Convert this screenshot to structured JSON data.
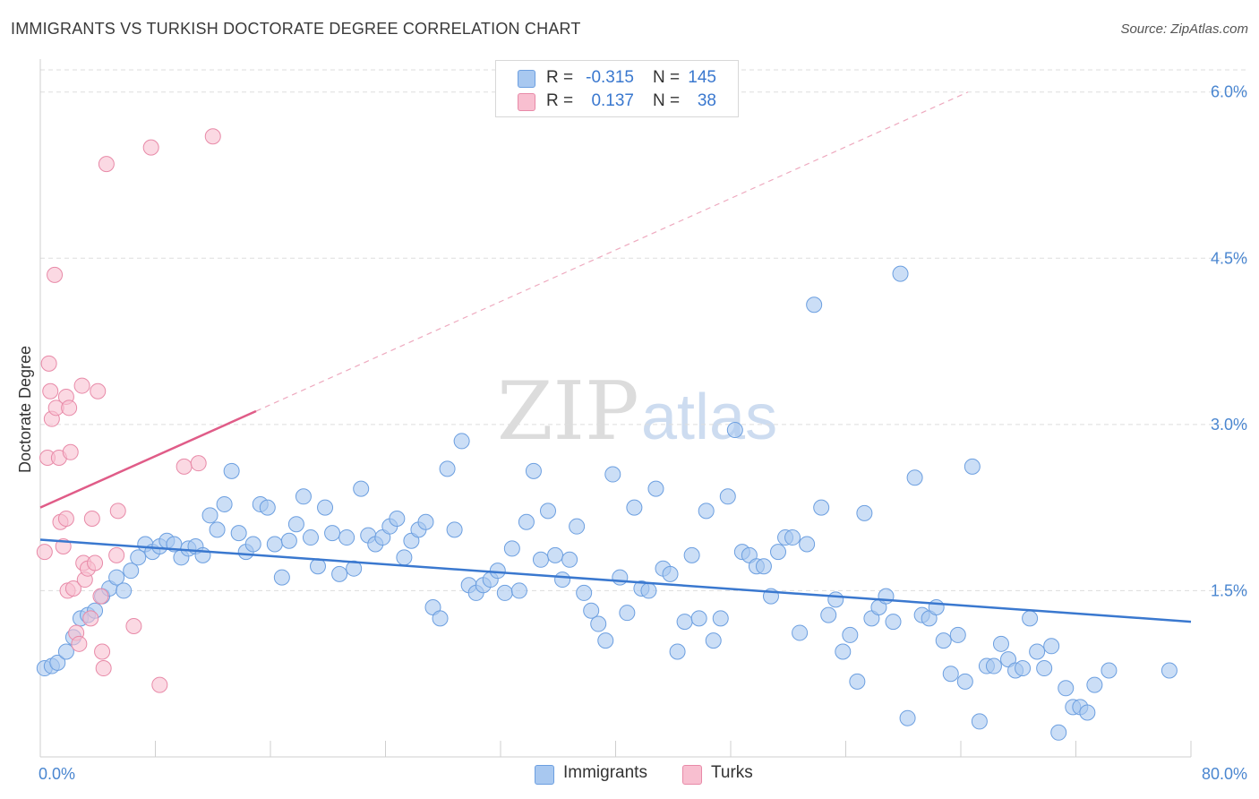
{
  "title": "IMMIGRANTS VS TURKISH DOCTORATE DEGREE CORRELATION CHART",
  "source": "Source: ZipAtlas.com",
  "watermark": {
    "zip": "ZIP",
    "atlas": "atlas"
  },
  "legend": {
    "rows": [
      {
        "r_label": "R =",
        "r_value": "-0.315",
        "n_label": "N =",
        "n_value": "145",
        "color": "#a8c8f0",
        "border": "#6c9fe0"
      },
      {
        "r_label": "R =",
        "r_value": "0.137",
        "n_label": "N =",
        "n_value": "38",
        "color": "#f8bfd0",
        "border": "#e88aa8"
      }
    ],
    "bottom": [
      {
        "label": "Immigrants",
        "color": "#a8c8f0",
        "border": "#6c9fe0"
      },
      {
        "label": "Turks",
        "color": "#f8bfd0",
        "border": "#e88aa8"
      }
    ]
  },
  "chart_data": {
    "type": "scatter",
    "title": "IMMIGRANTS VS TURKISH DOCTORATE DEGREE CORRELATION CHART",
    "xlabel": "",
    "ylabel": "Doctorate Degree",
    "xlim": [
      0,
      80
    ],
    "ylim": [
      0,
      6.2
    ],
    "x_tick_labels": [
      {
        "value": 0,
        "label": "0.0%"
      },
      {
        "value": 80,
        "label": "80.0%"
      }
    ],
    "y_ticks": [
      {
        "value": 1.5,
        "label": "1.5%"
      },
      {
        "value": 3.0,
        "label": "3.0%"
      },
      {
        "value": 4.5,
        "label": "4.5%"
      },
      {
        "value": 6.0,
        "label": "6.0%"
      }
    ],
    "grid": "horizontal dashed",
    "series": [
      {
        "name": "Immigrants",
        "color": "#a8c8f0",
        "stroke": "#6c9fe0",
        "trend": {
          "x": [
            0,
            80
          ],
          "y": [
            1.96,
            1.22
          ],
          "color": "#3a78cf"
        },
        "points": [
          [
            0.3,
            0.8
          ],
          [
            0.8,
            0.82
          ],
          [
            1.2,
            0.85
          ],
          [
            1.8,
            0.95
          ],
          [
            2.3,
            1.08
          ],
          [
            2.8,
            1.25
          ],
          [
            3.3,
            1.28
          ],
          [
            3.8,
            1.32
          ],
          [
            4.3,
            1.45
          ],
          [
            4.8,
            1.52
          ],
          [
            5.3,
            1.62
          ],
          [
            5.8,
            1.5
          ],
          [
            6.3,
            1.68
          ],
          [
            6.8,
            1.8
          ],
          [
            7.3,
            1.92
          ],
          [
            7.8,
            1.85
          ],
          [
            8.3,
            1.9
          ],
          [
            8.8,
            1.95
          ],
          [
            9.3,
            1.92
          ],
          [
            9.8,
            1.8
          ],
          [
            10.3,
            1.88
          ],
          [
            10.8,
            1.9
          ],
          [
            11.3,
            1.82
          ],
          [
            11.8,
            2.18
          ],
          [
            12.3,
            2.05
          ],
          [
            12.8,
            2.28
          ],
          [
            13.3,
            2.58
          ],
          [
            13.8,
            2.02
          ],
          [
            14.3,
            1.85
          ],
          [
            14.8,
            1.92
          ],
          [
            15.3,
            2.28
          ],
          [
            15.8,
            2.25
          ],
          [
            16.3,
            1.92
          ],
          [
            16.8,
            1.62
          ],
          [
            17.3,
            1.95
          ],
          [
            17.8,
            2.1
          ],
          [
            18.3,
            2.35
          ],
          [
            18.8,
            1.98
          ],
          [
            19.3,
            1.72
          ],
          [
            19.8,
            2.25
          ],
          [
            20.3,
            2.02
          ],
          [
            20.8,
            1.65
          ],
          [
            21.3,
            1.98
          ],
          [
            21.8,
            1.7
          ],
          [
            22.3,
            2.42
          ],
          [
            22.8,
            2.0
          ],
          [
            23.3,
            1.92
          ],
          [
            23.8,
            1.98
          ],
          [
            24.3,
            2.08
          ],
          [
            24.8,
            2.15
          ],
          [
            25.3,
            1.8
          ],
          [
            25.8,
            1.95
          ],
          [
            26.3,
            2.05
          ],
          [
            26.8,
            2.12
          ],
          [
            27.3,
            1.35
          ],
          [
            27.8,
            1.25
          ],
          [
            28.3,
            2.6
          ],
          [
            28.8,
            2.05
          ],
          [
            29.3,
            2.85
          ],
          [
            29.8,
            1.55
          ],
          [
            30.3,
            1.48
          ],
          [
            30.8,
            1.55
          ],
          [
            31.3,
            1.6
          ],
          [
            31.8,
            1.68
          ],
          [
            32.3,
            1.48
          ],
          [
            32.8,
            1.88
          ],
          [
            33.3,
            1.5
          ],
          [
            33.8,
            2.12
          ],
          [
            34.3,
            2.58
          ],
          [
            34.8,
            1.78
          ],
          [
            35.3,
            2.22
          ],
          [
            35.8,
            1.82
          ],
          [
            36.3,
            1.6
          ],
          [
            36.8,
            1.78
          ],
          [
            37.3,
            2.08
          ],
          [
            37.8,
            1.48
          ],
          [
            38.3,
            1.32
          ],
          [
            38.8,
            1.2
          ],
          [
            39.3,
            1.05
          ],
          [
            39.8,
            2.55
          ],
          [
            40.3,
            1.62
          ],
          [
            40.8,
            1.3
          ],
          [
            41.3,
            2.25
          ],
          [
            41.8,
            1.52
          ],
          [
            42.3,
            1.5
          ],
          [
            42.8,
            2.42
          ],
          [
            43.3,
            1.7
          ],
          [
            43.8,
            1.65
          ],
          [
            44.3,
            0.95
          ],
          [
            44.8,
            1.22
          ],
          [
            45.3,
            1.82
          ],
          [
            45.8,
            1.25
          ],
          [
            46.3,
            2.22
          ],
          [
            46.8,
            1.05
          ],
          [
            47.3,
            1.25
          ],
          [
            47.8,
            2.35
          ],
          [
            48.3,
            2.95
          ],
          [
            48.8,
            1.85
          ],
          [
            49.3,
            1.82
          ],
          [
            49.8,
            1.72
          ],
          [
            50.3,
            1.72
          ],
          [
            50.8,
            1.45
          ],
          [
            51.3,
            1.85
          ],
          [
            51.8,
            1.98
          ],
          [
            52.3,
            1.98
          ],
          [
            52.8,
            1.12
          ],
          [
            53.3,
            1.92
          ],
          [
            53.8,
            4.08
          ],
          [
            54.3,
            2.25
          ],
          [
            54.8,
            1.28
          ],
          [
            55.3,
            1.42
          ],
          [
            55.8,
            0.95
          ],
          [
            56.3,
            1.1
          ],
          [
            56.8,
            0.68
          ],
          [
            57.3,
            2.2
          ],
          [
            57.8,
            1.25
          ],
          [
            58.3,
            1.35
          ],
          [
            58.8,
            1.45
          ],
          [
            59.3,
            1.22
          ],
          [
            59.8,
            4.36
          ],
          [
            60.3,
            0.35
          ],
          [
            60.8,
            2.52
          ],
          [
            61.3,
            1.28
          ],
          [
            61.8,
            1.25
          ],
          [
            62.3,
            1.35
          ],
          [
            62.8,
            1.05
          ],
          [
            63.3,
            0.75
          ],
          [
            63.8,
            1.1
          ],
          [
            64.3,
            0.68
          ],
          [
            64.8,
            2.62
          ],
          [
            65.3,
            0.32
          ],
          [
            65.8,
            0.82
          ],
          [
            66.3,
            0.82
          ],
          [
            66.8,
            1.02
          ],
          [
            67.3,
            0.88
          ],
          [
            67.8,
            0.78
          ],
          [
            68.3,
            0.8
          ],
          [
            68.8,
            1.25
          ],
          [
            69.3,
            0.95
          ],
          [
            69.8,
            0.8
          ],
          [
            70.3,
            1.0
          ],
          [
            70.8,
            0.22
          ],
          [
            71.3,
            0.62
          ],
          [
            71.8,
            0.45
          ],
          [
            72.3,
            0.45
          ],
          [
            72.8,
            0.4
          ],
          [
            73.3,
            0.65
          ],
          [
            74.3,
            0.78
          ],
          [
            78.5,
            0.78
          ]
        ]
      },
      {
        "name": "Turks",
        "color": "#f8bfd0",
        "stroke": "#e88aa8",
        "trend": {
          "x": [
            0,
            15
          ],
          "y": [
            2.25,
            3.12
          ],
          "color": "#e05c88",
          "dashed_extension_to": [
            64.5,
            6.0
          ]
        },
        "points": [
          [
            0.3,
            1.85
          ],
          [
            0.5,
            2.7
          ],
          [
            0.6,
            3.55
          ],
          [
            0.7,
            3.3
          ],
          [
            0.8,
            3.05
          ],
          [
            1.0,
            4.35
          ],
          [
            1.1,
            3.15
          ],
          [
            1.3,
            2.7
          ],
          [
            1.4,
            2.12
          ],
          [
            1.6,
            1.9
          ],
          [
            1.8,
            2.15
          ],
          [
            1.8,
            3.25
          ],
          [
            1.9,
            1.5
          ],
          [
            2.0,
            3.15
          ],
          [
            2.1,
            2.75
          ],
          [
            2.3,
            1.52
          ],
          [
            2.5,
            1.12
          ],
          [
            2.7,
            1.02
          ],
          [
            2.9,
            3.35
          ],
          [
            3.0,
            1.75
          ],
          [
            3.1,
            1.6
          ],
          [
            3.3,
            1.7
          ],
          [
            3.5,
            1.25
          ],
          [
            3.6,
            2.15
          ],
          [
            3.8,
            1.75
          ],
          [
            4.0,
            3.3
          ],
          [
            4.2,
            1.45
          ],
          [
            4.3,
            0.95
          ],
          [
            4.4,
            0.8
          ],
          [
            4.6,
            5.35
          ],
          [
            5.3,
            1.82
          ],
          [
            5.4,
            2.22
          ],
          [
            6.5,
            1.18
          ],
          [
            7.7,
            5.5
          ],
          [
            8.3,
            0.65
          ],
          [
            10.0,
            2.62
          ],
          [
            11.0,
            2.65
          ],
          [
            12.0,
            5.6
          ]
        ]
      }
    ]
  }
}
